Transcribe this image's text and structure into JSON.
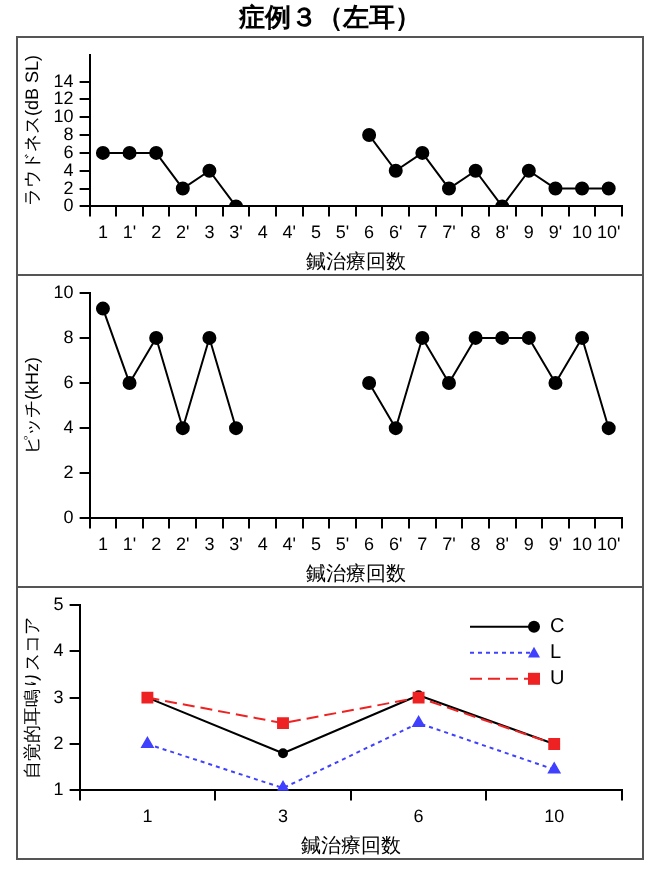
{
  "chart_data": [
    {
      "type": "line",
      "title": "症例３（左耳）",
      "xlabel": "鍼治療回数",
      "ylabel": "ラウドネス(dB SL)",
      "categories": [
        "1",
        "1'",
        "2",
        "2'",
        "3",
        "3'",
        "4",
        "4'",
        "5",
        "5'",
        "6",
        "6'",
        "7",
        "7'",
        "8",
        "8'",
        "9",
        "9'",
        "10",
        "10'"
      ],
      "series": [
        {
          "color": "#000000",
          "values": [
            6,
            6,
            6,
            2,
            4,
            0,
            null,
            null,
            null,
            null,
            8,
            4,
            6,
            2,
            4,
            0,
            4,
            2,
            2,
            2
          ]
        }
      ],
      "ylim": [
        0,
        17
      ],
      "yticks": [
        0,
        2,
        4,
        6,
        8,
        10,
        12,
        14
      ],
      "grid": false,
      "legend": false,
      "marker": "circle",
      "line_style": "solid"
    },
    {
      "type": "line",
      "xlabel": "鍼治療回数",
      "ylabel": "ピッチ(kHz)",
      "categories": [
        "1",
        "1'",
        "2",
        "2'",
        "3",
        "3'",
        "4",
        "4'",
        "5",
        "5'",
        "6",
        "6'",
        "7",
        "7'",
        "8",
        "8'",
        "9",
        "9'",
        "10",
        "10'"
      ],
      "series": [
        {
          "color": "#000000",
          "values": [
            9.3,
            6,
            8,
            4,
            8,
            4,
            null,
            null,
            null,
            null,
            6,
            4,
            8,
            6,
            8,
            8,
            8,
            6,
            8,
            4
          ]
        }
      ],
      "ylim": [
        0,
        10
      ],
      "yticks": [
        0,
        2,
        4,
        6,
        8,
        10
      ],
      "grid": false,
      "legend": false,
      "marker": "circle",
      "line_style": "solid"
    },
    {
      "type": "line",
      "xlabel": "鍼治療回数",
      "ylabel": "自覚的耳鳴りスコア",
      "categories": [
        "1",
        "3",
        "6",
        "10"
      ],
      "series": [
        {
          "name": "C",
          "color": "#000000",
          "values": [
            3,
            1.8,
            3.05,
            2
          ],
          "marker": "circle",
          "line_style": "solid"
        },
        {
          "name": "L",
          "color": "#4040ff",
          "values": [
            2,
            1.05,
            2.45,
            1.45
          ],
          "marker": "triangle",
          "line_style": "dotted"
        },
        {
          "name": "U",
          "color": "#ee2222",
          "values": [
            3,
            2.45,
            3,
            2
          ],
          "marker": "square",
          "line_style": "dashed"
        }
      ],
      "ylim": [
        1,
        5
      ],
      "yticks": [
        1,
        2,
        3,
        4,
        5
      ],
      "grid": false,
      "legend": "top right"
    }
  ]
}
